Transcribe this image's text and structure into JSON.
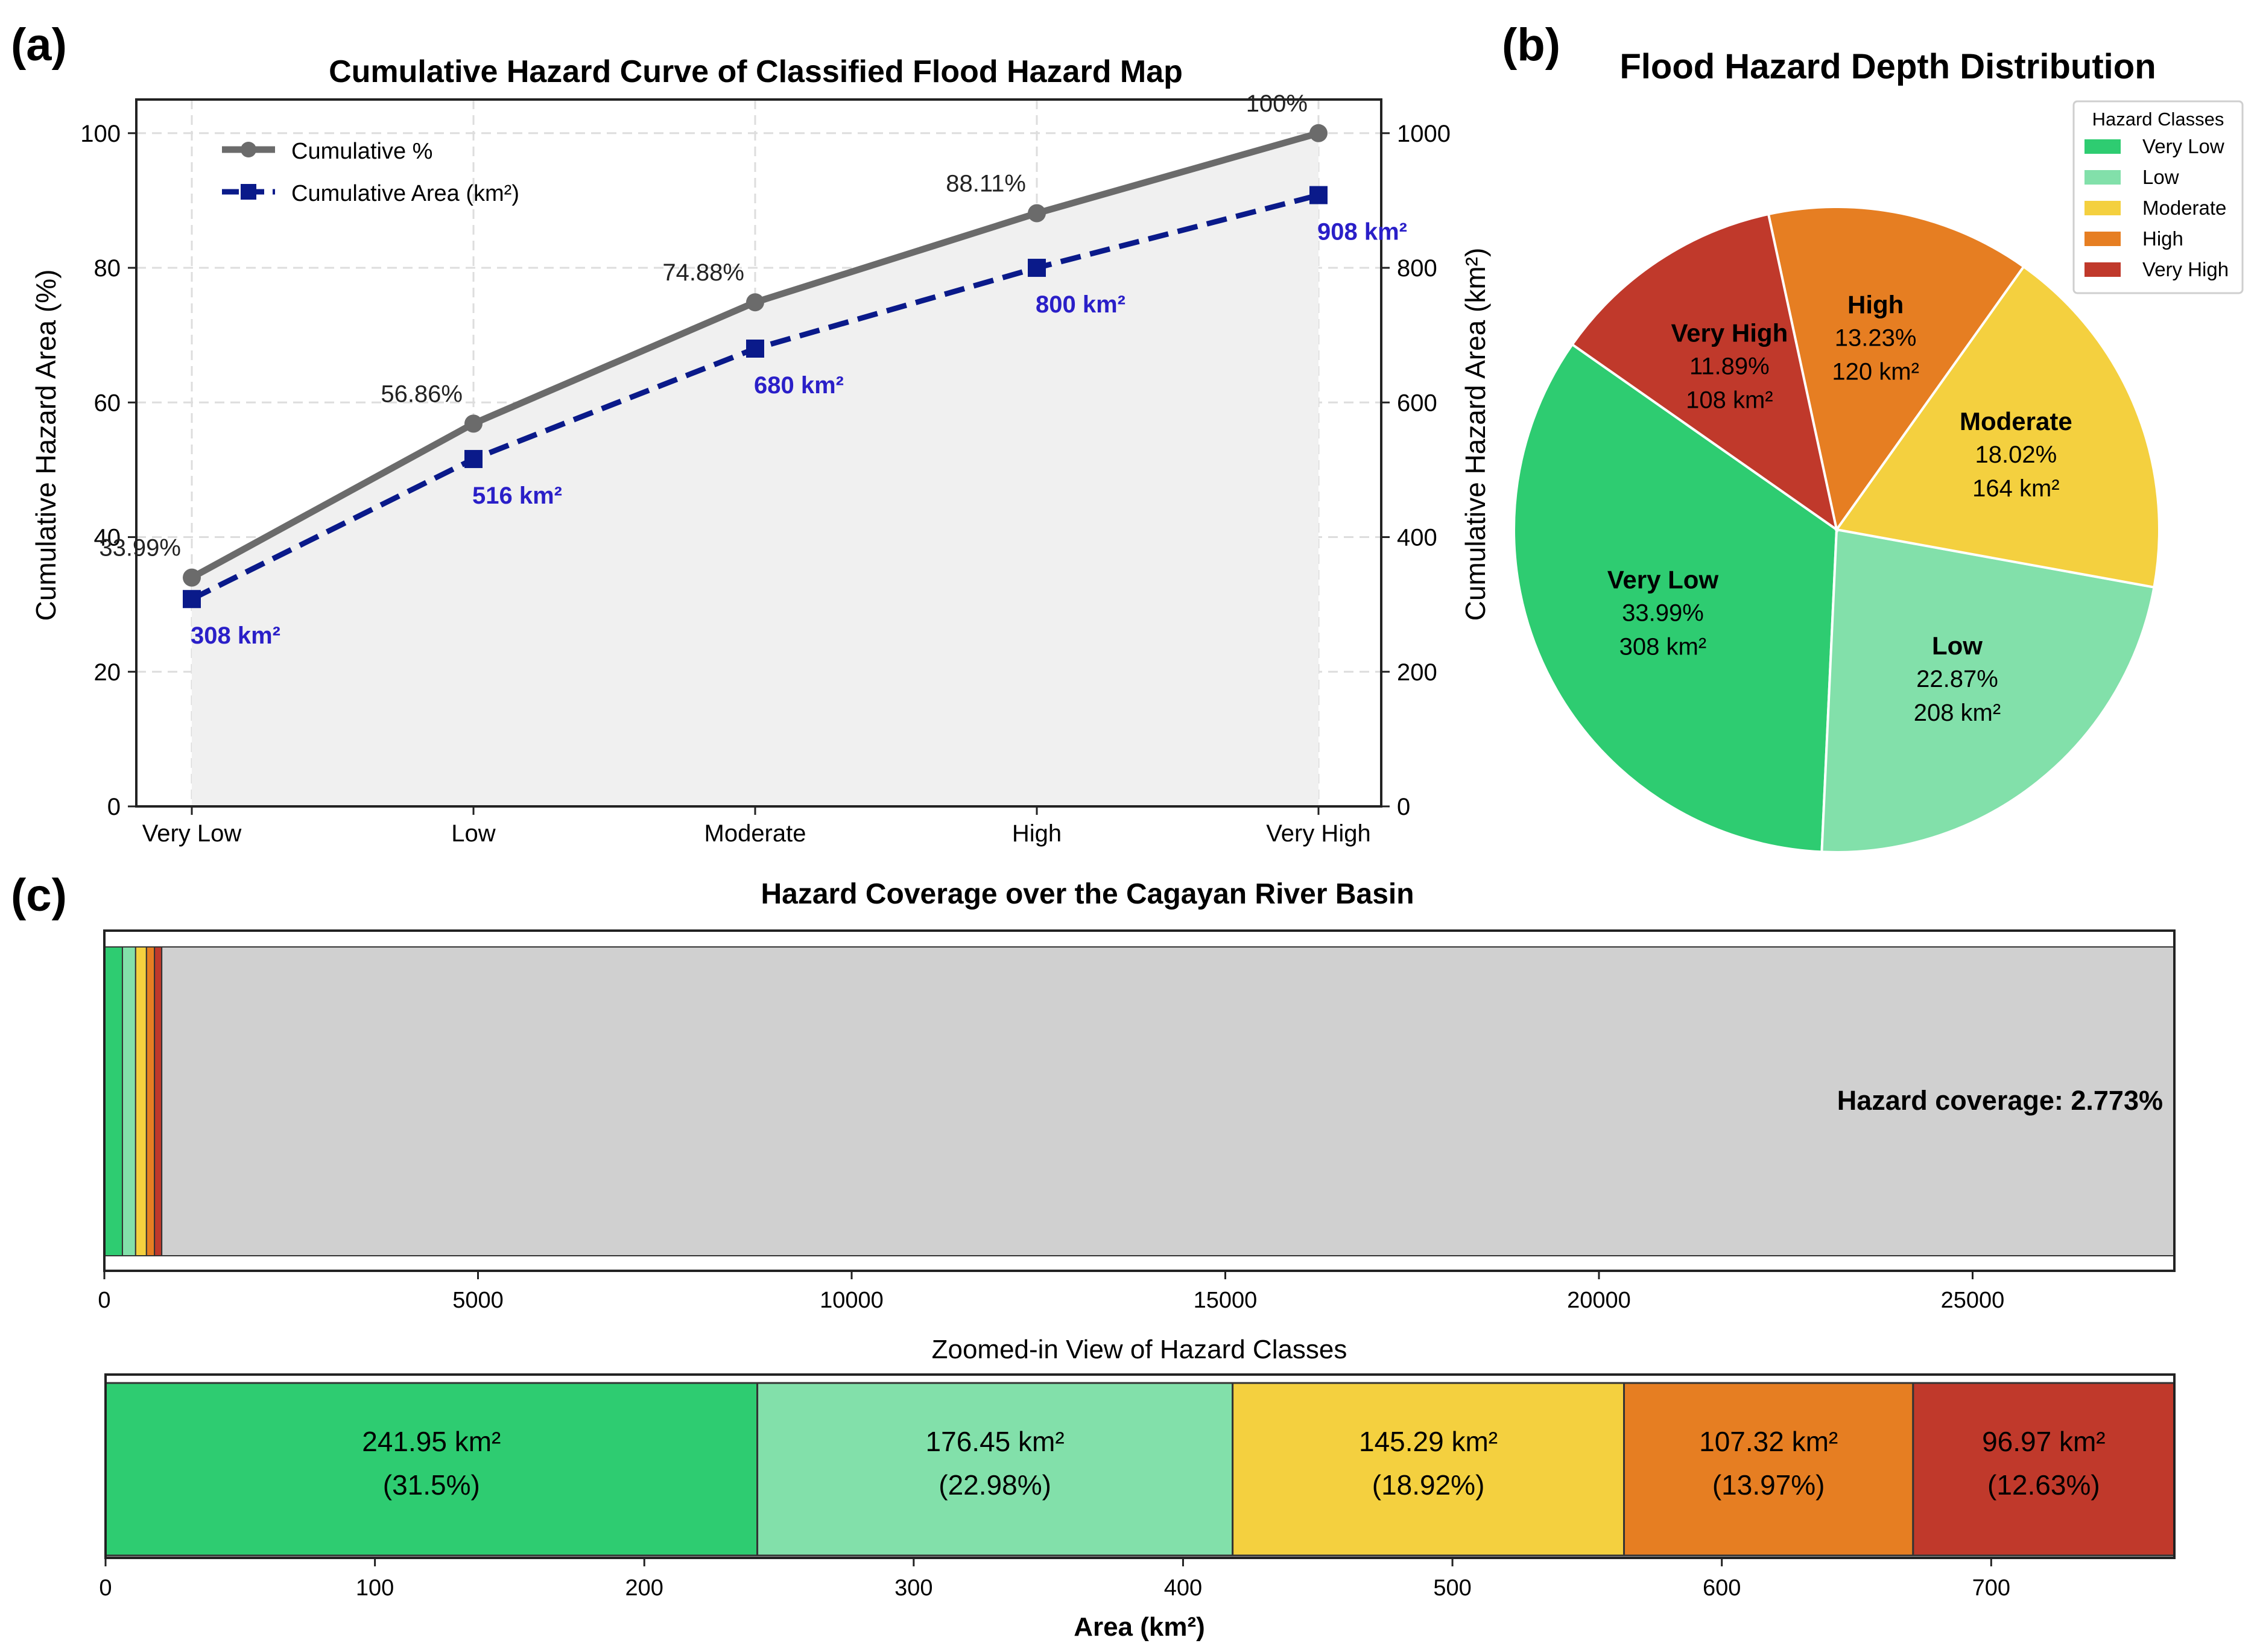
{
  "panel_labels": {
    "a": "(a)",
    "b": "(b)",
    "c": "(c)"
  },
  "colors": {
    "very_low": "#2ecc71",
    "low": "#82e0aa",
    "moderate": "#f4d03f",
    "high": "#e67e22",
    "very_high": "#c0392b",
    "cum_pct_line": "#6b6b6b",
    "cum_area_line": "#0a1a8a",
    "area_label": "#2a1fc8",
    "fill": "#f0f0f0",
    "basin_rest": "#d0d0d0"
  },
  "chart_data": [
    {
      "id": "a",
      "type": "line",
      "title": "Cumulative Hazard Curve of Classified Flood Hazard Map",
      "xlabel": "",
      "ylabel": "Cumulative Hazard Area (%)",
      "y2label": "Cumulative Hazard Area (km²)",
      "categories": [
        "Very Low",
        "Low",
        "Moderate",
        "High",
        "Very High"
      ],
      "ylim": [
        0,
        105
      ],
      "y2lim": [
        0,
        1050
      ],
      "yticks": [
        "0",
        "20",
        "40",
        "60",
        "80",
        "100"
      ],
      "y2ticks": [
        "0",
        "200",
        "400",
        "600",
        "800",
        "1000"
      ],
      "grid": true,
      "legend_position": "top-left",
      "series": [
        {
          "name": "Cumulative %",
          "axis": "left",
          "values": [
            33.99,
            56.86,
            74.88,
            88.11,
            100
          ],
          "labels": [
            "33.99%",
            "56.86%",
            "74.88%",
            "88.11%",
            "100%"
          ]
        },
        {
          "name": "Cumulative Area (km²)",
          "axis": "right",
          "values": [
            308,
            516,
            680,
            800,
            908
          ],
          "labels": [
            "308 km²",
            "516 km²",
            "680 km²",
            "800 km²",
            "908 km²"
          ]
        }
      ]
    },
    {
      "id": "b",
      "type": "pie",
      "title": "Flood Hazard Depth Distribution",
      "legend_title": "Hazard Classes",
      "legend_position": "top-right",
      "slices": [
        {
          "name": "Very Low",
          "pct": 33.99,
          "pct_label": "33.99%",
          "area_label": "308 km²"
        },
        {
          "name": "Low",
          "pct": 22.87,
          "pct_label": "22.87%",
          "area_label": "208 km²"
        },
        {
          "name": "Moderate",
          "pct": 18.02,
          "pct_label": "18.02%",
          "area_label": "164 km²"
        },
        {
          "name": "High",
          "pct": 13.23,
          "pct_label": "13.23%",
          "area_label": "120 km²"
        },
        {
          "name": "Very High",
          "pct": 11.89,
          "pct_label": "11.89%",
          "area_label": "108 km²"
        }
      ]
    },
    {
      "id": "c1",
      "type": "bar",
      "orientation": "stacked-horizontal",
      "title": "Hazard Coverage over the Cagayan River Basin",
      "xlim": [
        0,
        27700
      ],
      "xticks": [
        0,
        5000,
        10000,
        15000,
        20000,
        25000
      ],
      "segments": [
        {
          "name": "Very Low",
          "value": 241.95
        },
        {
          "name": "Low",
          "value": 176.45
        },
        {
          "name": "Moderate",
          "value": 145.29
        },
        {
          "name": "High",
          "value": 107.32
        },
        {
          "name": "Very High",
          "value": 96.97
        },
        {
          "name": "Remaining basin",
          "value": 26932
        }
      ],
      "annotation": "Hazard coverage: 2.773%"
    },
    {
      "id": "c2",
      "type": "bar",
      "orientation": "stacked-horizontal",
      "title": "Zoomed-in View of Hazard Classes",
      "xlabel": "Area (km²)",
      "xlim": [
        0,
        768
      ],
      "xticks": [
        0,
        100,
        200,
        300,
        400,
        500,
        600,
        700
      ],
      "segments": [
        {
          "name": "Very Low",
          "value": 241.95,
          "value_label": "241.95 km²",
          "pct_label": "(31.5%)"
        },
        {
          "name": "Low",
          "value": 176.45,
          "value_label": "176.45 km²",
          "pct_label": "(22.98%)"
        },
        {
          "name": "Moderate",
          "value": 145.29,
          "value_label": "145.29 km²",
          "pct_label": "(18.92%)"
        },
        {
          "name": "High",
          "value": 107.32,
          "value_label": "107.32 km²",
          "pct_label": "(13.97%)"
        },
        {
          "name": "Very High",
          "value": 96.97,
          "value_label": "96.97 km²",
          "pct_label": "(12.63%)"
        }
      ]
    }
  ]
}
